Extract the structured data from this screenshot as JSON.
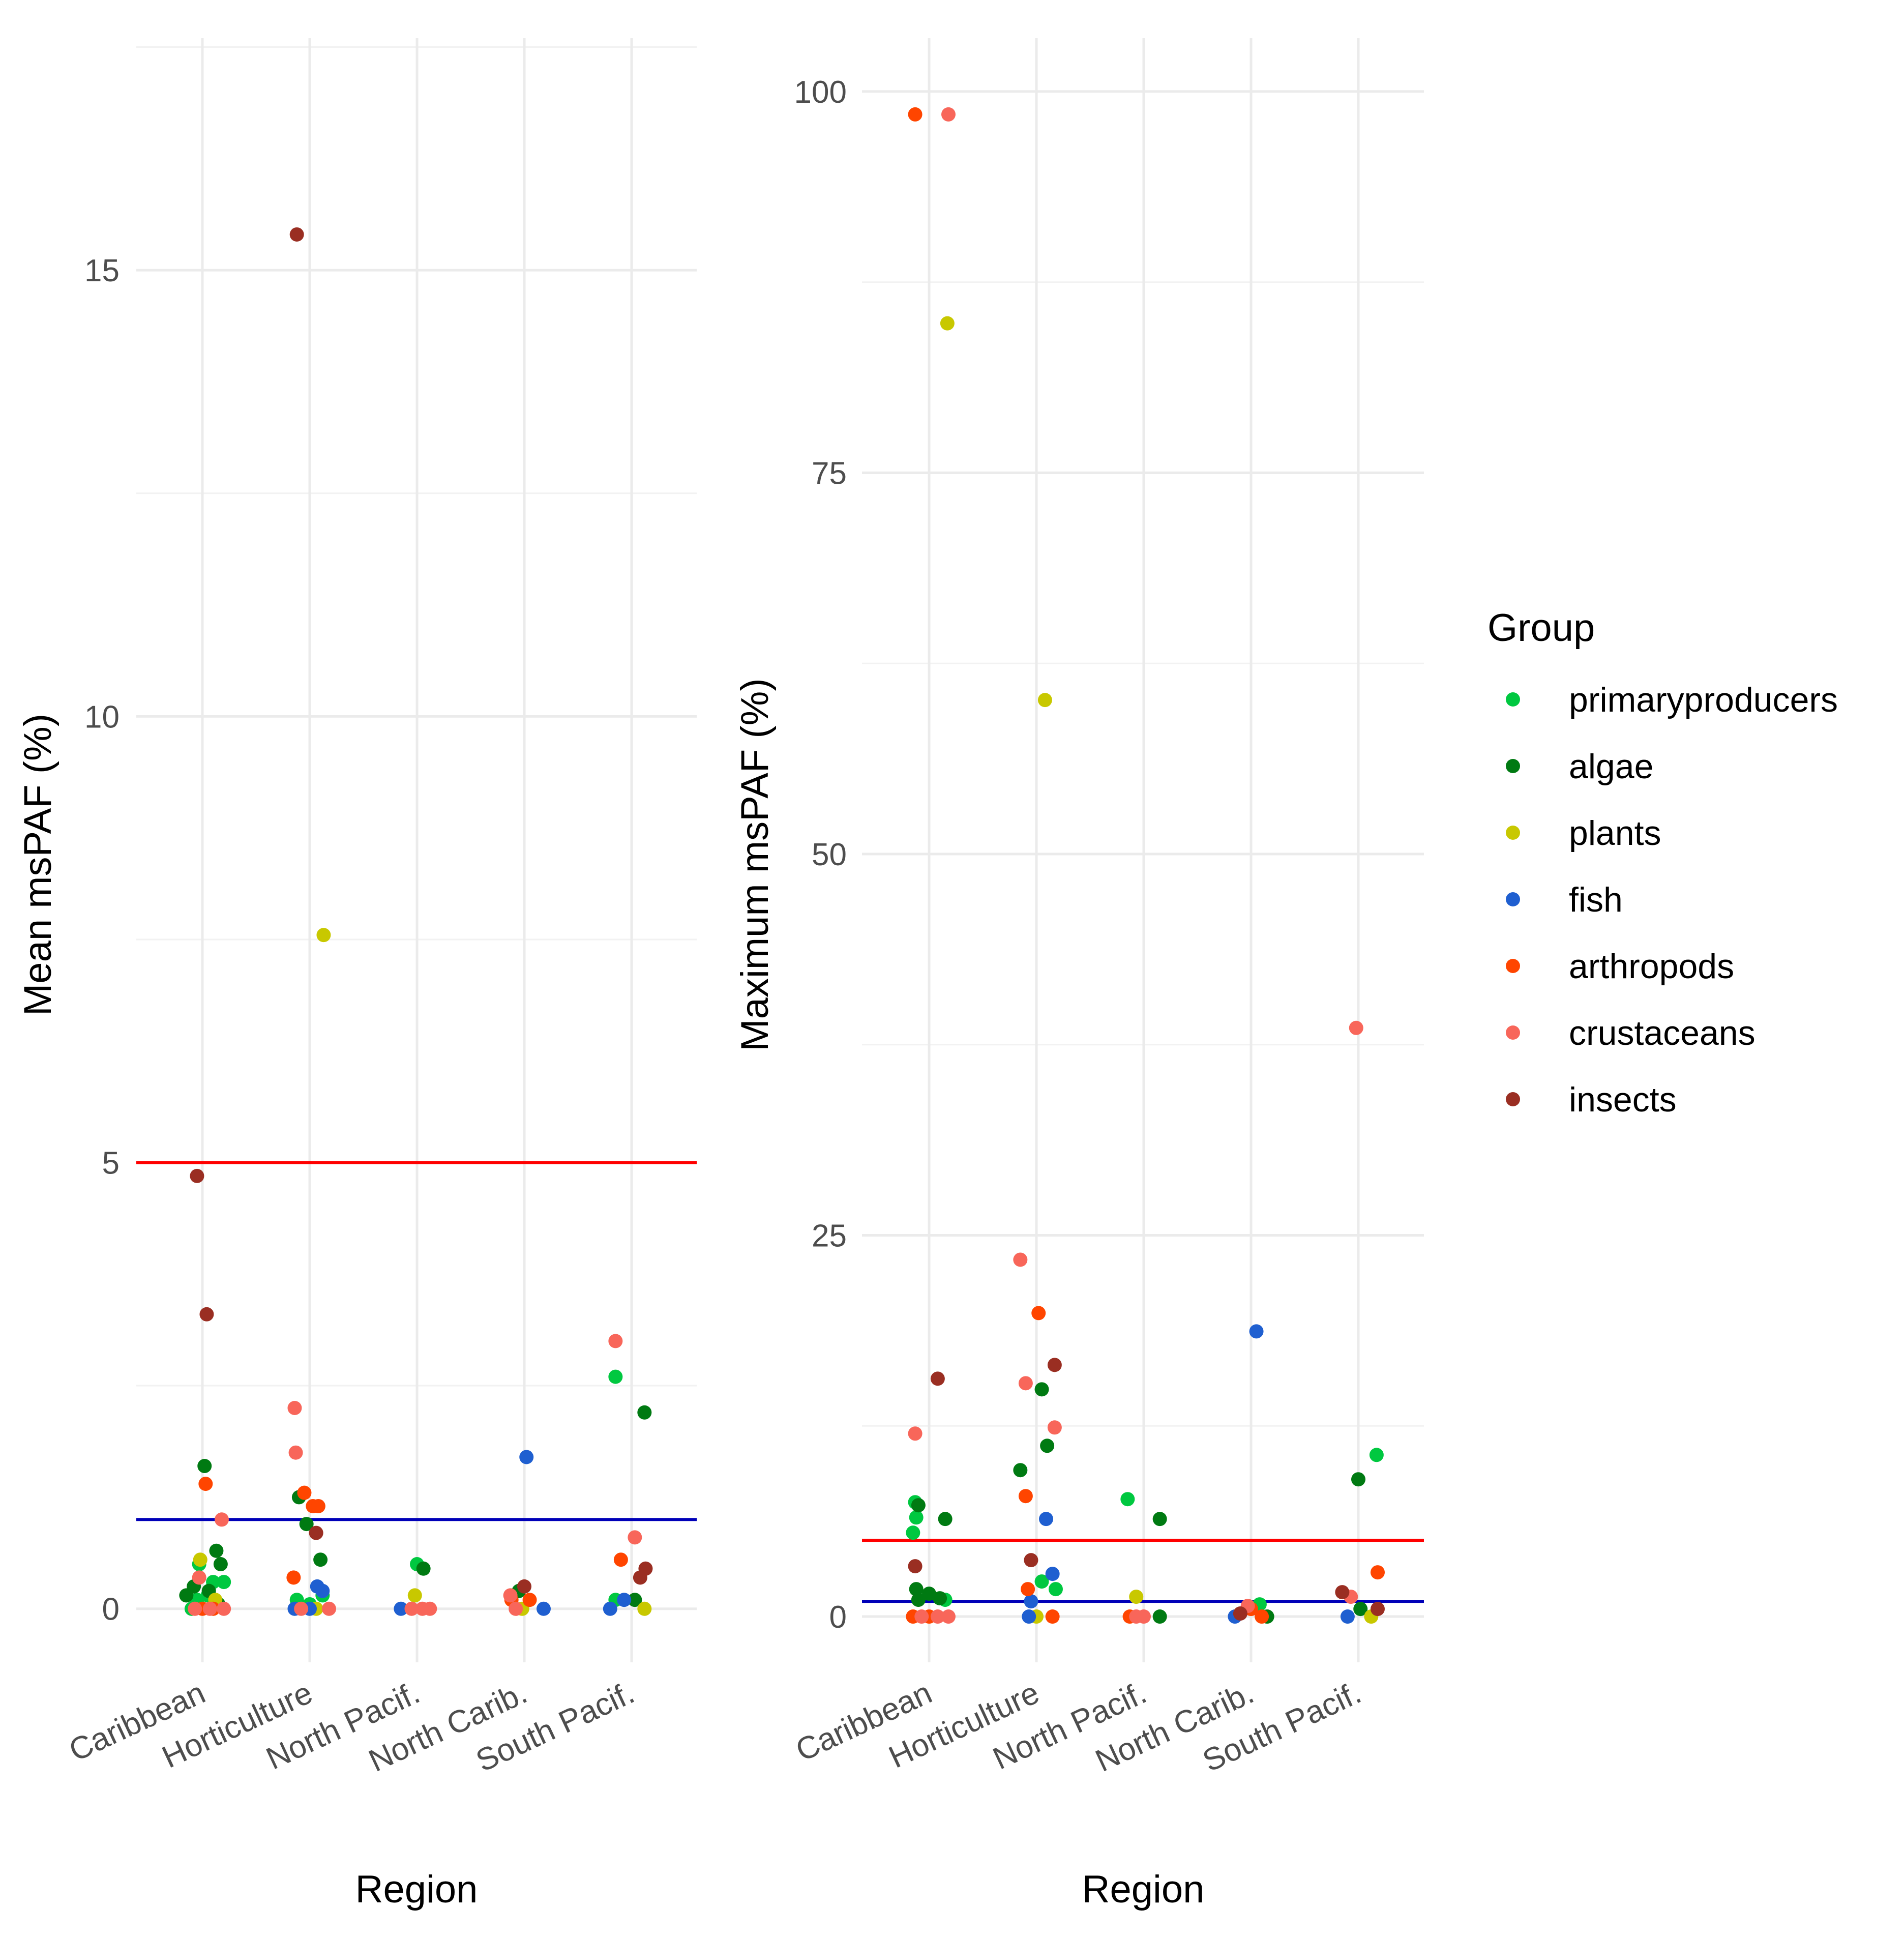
{
  "legend": {
    "title": "Group",
    "items": [
      {
        "key": "primaryproducers",
        "label": "primaryproducers",
        "color": "#00c840"
      },
      {
        "key": "algae",
        "label": "algae",
        "color": "#007a12"
      },
      {
        "key": "plants",
        "label": "plants",
        "color": "#c8c800"
      },
      {
        "key": "fish",
        "label": "fish",
        "color": "#1f5fd0"
      },
      {
        "key": "arthropods",
        "label": "arthropods",
        "color": "#ff4500"
      },
      {
        "key": "crustaceans",
        "label": "crustaceans",
        "color": "#f8665a"
      },
      {
        "key": "insects",
        "label": "insects",
        "color": "#9a2e22"
      }
    ]
  },
  "chart_data": [
    {
      "type": "scatter",
      "xlabel": "Region",
      "ylabel": "Mean msPAF (%)",
      "categories": [
        "Caribbean",
        "Horticulture",
        "North Pacif.",
        "North Carib.",
        "South Pacif."
      ],
      "ylim": [
        -0.6,
        17.6
      ],
      "yticks": [
        0,
        5,
        10,
        15
      ],
      "ytick_labels": [
        "0",
        "5",
        "10",
        "15"
      ],
      "minor_gridlines": [
        2.5,
        7.5,
        12.5,
        17.5
      ],
      "hlines": [
        {
          "y": 5,
          "color": "#ff0000"
        },
        {
          "y": 1,
          "color": "#0000b8"
        }
      ],
      "points": [
        {
          "x": 0.9,
          "y": 0,
          "group": "primaryproducers"
        },
        {
          "x": 0.95,
          "y": 0.1,
          "group": "primaryproducers"
        },
        {
          "x": 1.1,
          "y": 0.3,
          "group": "primaryproducers"
        },
        {
          "x": 1.2,
          "y": 0.3,
          "group": "primaryproducers"
        },
        {
          "x": 0.97,
          "y": 0.5,
          "group": "primaryproducers"
        },
        {
          "x": 1.05,
          "y": 0.15,
          "group": "primaryproducers"
        },
        {
          "x": 0.85,
          "y": 0.15,
          "group": "algae"
        },
        {
          "x": 0.92,
          "y": 0.25,
          "group": "algae"
        },
        {
          "x": 1.02,
          "y": 1.6,
          "group": "algae"
        },
        {
          "x": 1.13,
          "y": 0.65,
          "group": "algae"
        },
        {
          "x": 1.17,
          "y": 0.5,
          "group": "algae"
        },
        {
          "x": 1.06,
          "y": 0.2,
          "group": "algae"
        },
        {
          "x": 1.15,
          "y": 0.05,
          "group": "algae"
        },
        {
          "x": 0.98,
          "y": 0.55,
          "group": "plants"
        },
        {
          "x": 1.12,
          "y": 0.1,
          "group": "plants"
        },
        {
          "x": 1.03,
          "y": 1.4,
          "group": "arthropods"
        },
        {
          "x": 1.0,
          "y": 0,
          "group": "arthropods"
        },
        {
          "x": 1.1,
          "y": 0,
          "group": "arthropods"
        },
        {
          "x": 0.97,
          "y": 0.35,
          "group": "crustaceans"
        },
        {
          "x": 1.18,
          "y": 1.0,
          "group": "crustaceans"
        },
        {
          "x": 0.93,
          "y": 0,
          "group": "crustaceans"
        },
        {
          "x": 1.07,
          "y": 0,
          "group": "crustaceans"
        },
        {
          "x": 1.2,
          "y": 0,
          "group": "crustaceans"
        },
        {
          "x": 0.95,
          "y": 4.85,
          "group": "insects"
        },
        {
          "x": 1.04,
          "y": 3.3,
          "group": "insects"
        },
        {
          "x": 1.88,
          "y": 0.1,
          "group": "primaryproducers"
        },
        {
          "x": 2.0,
          "y": 0.05,
          "group": "primaryproducers"
        },
        {
          "x": 2.12,
          "y": 0.15,
          "group": "primaryproducers"
        },
        {
          "x": 1.9,
          "y": 1.25,
          "group": "algae"
        },
        {
          "x": 1.97,
          "y": 0.95,
          "group": "algae"
        },
        {
          "x": 2.1,
          "y": 0.55,
          "group": "algae"
        },
        {
          "x": 2.13,
          "y": 7.55,
          "group": "plants"
        },
        {
          "x": 2.06,
          "y": 0,
          "group": "plants"
        },
        {
          "x": 2.07,
          "y": 0.25,
          "group": "fish"
        },
        {
          "x": 2.12,
          "y": 0.2,
          "group": "fish"
        },
        {
          "x": 1.86,
          "y": 0,
          "group": "fish"
        },
        {
          "x": 2.0,
          "y": 0,
          "group": "fish"
        },
        {
          "x": 1.85,
          "y": 0.35,
          "group": "arthropods"
        },
        {
          "x": 1.95,
          "y": 1.3,
          "group": "arthropods"
        },
        {
          "x": 2.03,
          "y": 1.15,
          "group": "arthropods"
        },
        {
          "x": 2.08,
          "y": 1.15,
          "group": "arthropods"
        },
        {
          "x": 1.86,
          "y": 2.25,
          "group": "crustaceans"
        },
        {
          "x": 1.87,
          "y": 1.75,
          "group": "crustaceans"
        },
        {
          "x": 1.92,
          "y": 0,
          "group": "crustaceans"
        },
        {
          "x": 2.18,
          "y": 0,
          "group": "crustaceans"
        },
        {
          "x": 1.88,
          "y": 15.4,
          "group": "insects"
        },
        {
          "x": 2.06,
          "y": 0.85,
          "group": "insects"
        },
        {
          "x": 3.0,
          "y": 0.5,
          "group": "primaryproducers"
        },
        {
          "x": 3.06,
          "y": 0.45,
          "group": "algae"
        },
        {
          "x": 2.98,
          "y": 0.15,
          "group": "plants"
        },
        {
          "x": 2.85,
          "y": 0,
          "group": "fish"
        },
        {
          "x": 2.95,
          "y": 0,
          "group": "crustaceans"
        },
        {
          "x": 3.05,
          "y": 0,
          "group": "crustaceans"
        },
        {
          "x": 3.12,
          "y": 0,
          "group": "crustaceans"
        },
        {
          "x": 3.95,
          "y": 0.2,
          "group": "algae"
        },
        {
          "x": 3.98,
          "y": 0,
          "group": "plants"
        },
        {
          "x": 4.02,
          "y": 1.7,
          "group": "fish"
        },
        {
          "x": 4.18,
          "y": 0,
          "group": "fish"
        },
        {
          "x": 3.88,
          "y": 0.1,
          "group": "arthropods"
        },
        {
          "x": 4.05,
          "y": 0.1,
          "group": "arthropods"
        },
        {
          "x": 3.87,
          "y": 0.15,
          "group": "crustaceans"
        },
        {
          "x": 3.92,
          "y": 0,
          "group": "crustaceans"
        },
        {
          "x": 4.0,
          "y": 0.25,
          "group": "insects"
        },
        {
          "x": 4.85,
          "y": 2.6,
          "group": "primaryproducers"
        },
        {
          "x": 4.85,
          "y": 0.1,
          "group": "primaryproducers"
        },
        {
          "x": 5.12,
          "y": 2.2,
          "group": "algae"
        },
        {
          "x": 5.03,
          "y": 0.1,
          "group": "algae"
        },
        {
          "x": 5.12,
          "y": 0,
          "group": "plants"
        },
        {
          "x": 4.8,
          "y": 0,
          "group": "fish"
        },
        {
          "x": 4.93,
          "y": 0.1,
          "group": "fish"
        },
        {
          "x": 4.9,
          "y": 0.55,
          "group": "arthropods"
        },
        {
          "x": 4.85,
          "y": 3.0,
          "group": "crustaceans"
        },
        {
          "x": 5.03,
          "y": 0.8,
          "group": "crustaceans"
        },
        {
          "x": 5.13,
          "y": 0.45,
          "group": "insects"
        },
        {
          "x": 5.08,
          "y": 0.35,
          "group": "insects"
        }
      ]
    },
    {
      "type": "scatter",
      "xlabel": "Region",
      "ylabel": "Maximum msPAF (%)",
      "categories": [
        "Caribbean",
        "Horticulture",
        "North Pacif.",
        "North Carib.",
        "South Pacif."
      ],
      "ylim": [
        -3,
        103.5
      ],
      "yticks": [
        0,
        25,
        50,
        75,
        100
      ],
      "ytick_labels": [
        "0",
        "25",
        "50",
        "75",
        "100"
      ],
      "minor_gridlines": [
        12.5,
        37.5,
        62.5,
        87.5
      ],
      "hlines": [
        {
          "y": 5,
          "color": "#ff0000"
        },
        {
          "y": 1,
          "color": "#0000b8"
        }
      ],
      "points": [
        {
          "x": 0.87,
          "y": 7.5,
          "group": "primaryproducers"
        },
        {
          "x": 0.88,
          "y": 6.5,
          "group": "primaryproducers"
        },
        {
          "x": 0.85,
          "y": 5.5,
          "group": "primaryproducers"
        },
        {
          "x": 1.15,
          "y": 1.1,
          "group": "primaryproducers"
        },
        {
          "x": 0.9,
          "y": 7.3,
          "group": "algae"
        },
        {
          "x": 1.15,
          "y": 6.4,
          "group": "algae"
        },
        {
          "x": 0.88,
          "y": 1.8,
          "group": "algae"
        },
        {
          "x": 1.0,
          "y": 1.5,
          "group": "algae"
        },
        {
          "x": 1.1,
          "y": 1.2,
          "group": "algae"
        },
        {
          "x": 0.9,
          "y": 1.1,
          "group": "algae"
        },
        {
          "x": 1.17,
          "y": 84.8,
          "group": "plants"
        },
        {
          "x": 0.87,
          "y": 98.5,
          "group": "arthropods"
        },
        {
          "x": 1.0,
          "y": 0,
          "group": "arthropods"
        },
        {
          "x": 0.85,
          "y": 0,
          "group": "arthropods"
        },
        {
          "x": 1.18,
          "y": 98.5,
          "group": "crustaceans"
        },
        {
          "x": 0.87,
          "y": 12.0,
          "group": "crustaceans"
        },
        {
          "x": 0.93,
          "y": 0,
          "group": "crustaceans"
        },
        {
          "x": 1.08,
          "y": 0,
          "group": "crustaceans"
        },
        {
          "x": 1.18,
          "y": 0,
          "group": "crustaceans"
        },
        {
          "x": 1.08,
          "y": 15.6,
          "group": "insects"
        },
        {
          "x": 0.87,
          "y": 3.3,
          "group": "insects"
        },
        {
          "x": 2.05,
          "y": 2.3,
          "group": "primaryproducers"
        },
        {
          "x": 2.18,
          "y": 1.8,
          "group": "primaryproducers"
        },
        {
          "x": 1.85,
          "y": 9.6,
          "group": "algae"
        },
        {
          "x": 2.05,
          "y": 14.9,
          "group": "algae"
        },
        {
          "x": 2.1,
          "y": 11.2,
          "group": "algae"
        },
        {
          "x": 2.08,
          "y": 60.1,
          "group": "plants"
        },
        {
          "x": 2.0,
          "y": 0,
          "group": "plants"
        },
        {
          "x": 2.09,
          "y": 6.4,
          "group": "fish"
        },
        {
          "x": 2.15,
          "y": 2.8,
          "group": "fish"
        },
        {
          "x": 1.95,
          "y": 1.0,
          "group": "fish"
        },
        {
          "x": 1.93,
          "y": 0,
          "group": "fish"
        },
        {
          "x": 2.02,
          "y": 19.9,
          "group": "arthropods"
        },
        {
          "x": 1.9,
          "y": 7.9,
          "group": "arthropods"
        },
        {
          "x": 1.92,
          "y": 1.8,
          "group": "arthropods"
        },
        {
          "x": 2.15,
          "y": 0,
          "group": "arthropods"
        },
        {
          "x": 1.85,
          "y": 23.4,
          "group": "crustaceans"
        },
        {
          "x": 1.9,
          "y": 15.3,
          "group": "crustaceans"
        },
        {
          "x": 2.17,
          "y": 12.4,
          "group": "crustaceans"
        },
        {
          "x": 2.17,
          "y": 16.5,
          "group": "insects"
        },
        {
          "x": 1.95,
          "y": 3.7,
          "group": "insects"
        },
        {
          "x": 2.85,
          "y": 7.7,
          "group": "primaryproducers"
        },
        {
          "x": 3.15,
          "y": 6.4,
          "group": "algae"
        },
        {
          "x": 3.15,
          "y": 0,
          "group": "algae"
        },
        {
          "x": 2.93,
          "y": 1.3,
          "group": "plants"
        },
        {
          "x": 2.87,
          "y": 0,
          "group": "arthropods"
        },
        {
          "x": 2.93,
          "y": 0,
          "group": "crustaceans"
        },
        {
          "x": 3.0,
          "y": 0,
          "group": "crustaceans"
        },
        {
          "x": 4.08,
          "y": 0.8,
          "group": "primaryproducers"
        },
        {
          "x": 4.15,
          "y": 0,
          "group": "algae"
        },
        {
          "x": 4.05,
          "y": 18.7,
          "group": "fish"
        },
        {
          "x": 3.85,
          "y": 0,
          "group": "fish"
        },
        {
          "x": 4.0,
          "y": 0.5,
          "group": "arthropods"
        },
        {
          "x": 4.1,
          "y": 0,
          "group": "arthropods"
        },
        {
          "x": 3.97,
          "y": 0.7,
          "group": "crustaceans"
        },
        {
          "x": 3.9,
          "y": 0.2,
          "group": "insects"
        },
        {
          "x": 5.17,
          "y": 10.6,
          "group": "primaryproducers"
        },
        {
          "x": 5.0,
          "y": 9.0,
          "group": "algae"
        },
        {
          "x": 5.02,
          "y": 0.5,
          "group": "algae"
        },
        {
          "x": 5.12,
          "y": 0,
          "group": "plants"
        },
        {
          "x": 4.9,
          "y": 0,
          "group": "fish"
        },
        {
          "x": 5.18,
          "y": 2.9,
          "group": "arthropods"
        },
        {
          "x": 4.98,
          "y": 38.6,
          "group": "crustaceans"
        },
        {
          "x": 4.93,
          "y": 1.3,
          "group": "crustaceans"
        },
        {
          "x": 4.85,
          "y": 1.6,
          "group": "insects"
        },
        {
          "x": 5.18,
          "y": 0.5,
          "group": "insects"
        }
      ]
    }
  ]
}
